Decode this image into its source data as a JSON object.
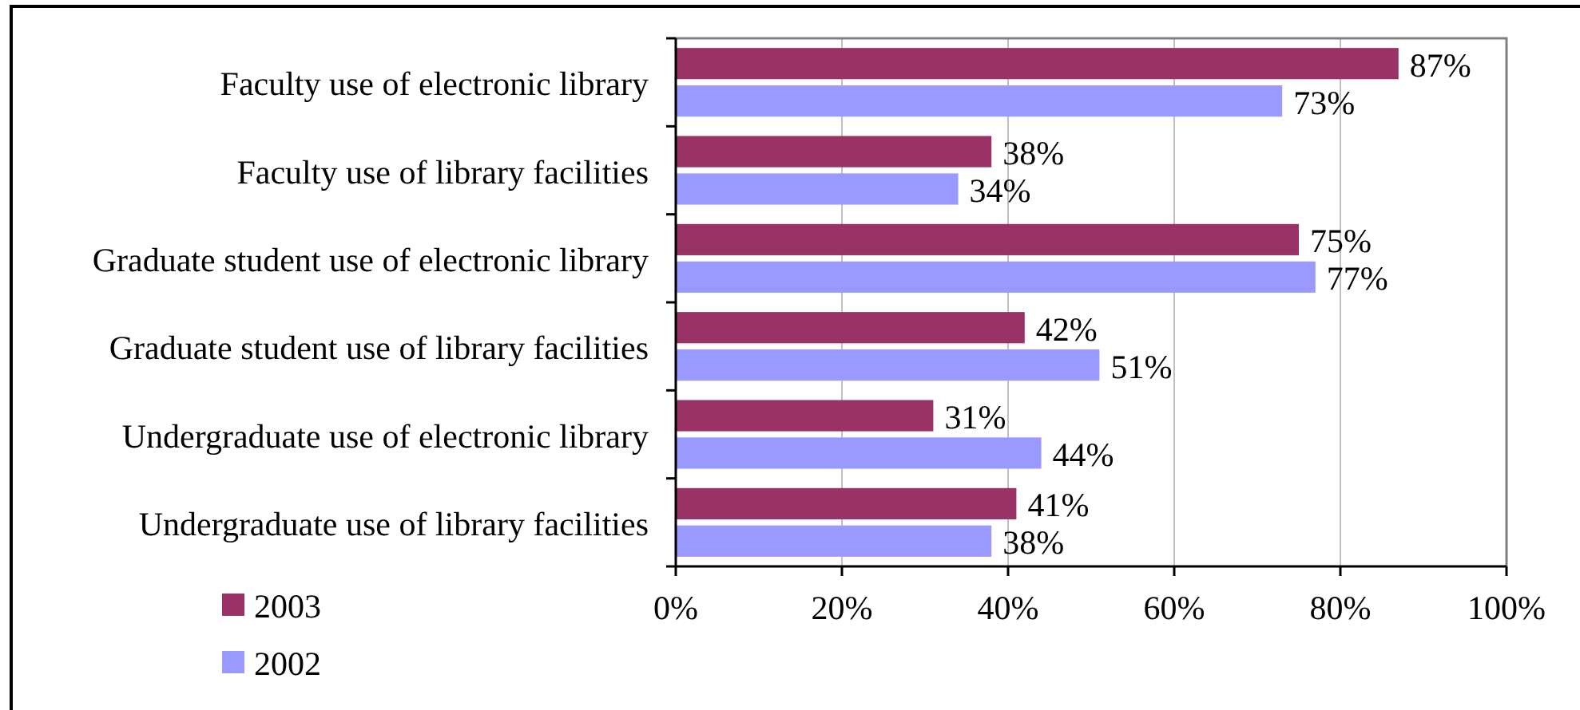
{
  "chart_data": {
    "type": "bar",
    "orientation": "horizontal",
    "categories": [
      "Faculty use of electronic library",
      "Faculty use of library facilities",
      "Graduate student use of electronic library",
      "Graduate student use of library facilities",
      "Undergraduate use of electronic library",
      "Undergraduate use of library facilities"
    ],
    "series": [
      {
        "name": "2003",
        "color": "#993366",
        "values": [
          87,
          38,
          75,
          42,
          31,
          41
        ],
        "value_labels": [
          "87%",
          "38%",
          "75%",
          "42%",
          "31%",
          "41%"
        ]
      },
      {
        "name": "2002",
        "color": "#9999ff",
        "values": [
          73,
          34,
          77,
          51,
          44,
          38
        ],
        "value_labels": [
          "73%",
          "34%",
          "77%",
          "51%",
          "44%",
          "38%"
        ]
      }
    ],
    "xlim": [
      0,
      100
    ],
    "xticks": [
      {
        "value": 0,
        "label": "0%"
      },
      {
        "value": 20,
        "label": "20%"
      },
      {
        "value": 40,
        "label": "40%"
      },
      {
        "value": 60,
        "label": "60%"
      },
      {
        "value": 80,
        "label": "80%"
      },
      {
        "value": 100,
        "label": "100%"
      }
    ],
    "grid": "x",
    "legend": "bottom left"
  }
}
